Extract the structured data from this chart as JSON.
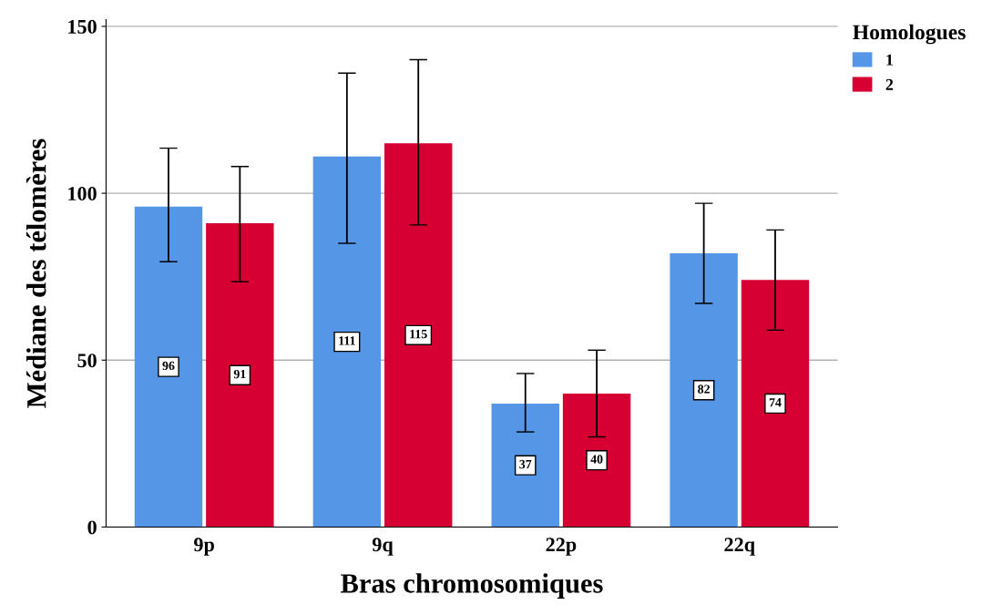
{
  "chart_data": {
    "type": "bar",
    "xlabel": "Bras chromosomiques",
    "ylabel": "Médiane des télomères",
    "legend_title": "Homologues",
    "categories": [
      "9p",
      "9q",
      "22p",
      "22q"
    ],
    "series": [
      {
        "name": "1",
        "color": "#5596e6",
        "values": [
          96,
          111,
          37,
          82
        ],
        "errors": [
          [
            79.5,
            113.5
          ],
          [
            85,
            136
          ],
          [
            28.5,
            46
          ],
          [
            67,
            97
          ]
        ]
      },
      {
        "name": "2",
        "color": "#d60032",
        "values": [
          91,
          115,
          40,
          74
        ],
        "errors": [
          [
            73.5,
            108
          ],
          [
            90.5,
            140
          ],
          [
            27,
            53
          ],
          [
            59,
            89
          ]
        ]
      }
    ],
    "ylim": [
      0,
      152
    ],
    "yticks": [
      0,
      50,
      100,
      150
    ],
    "grid": "y",
    "legend": "top right",
    "data_labels": true
  }
}
